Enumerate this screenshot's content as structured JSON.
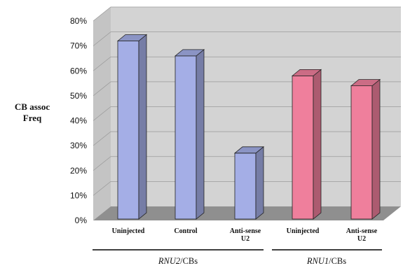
{
  "chart_data": {
    "type": "bar",
    "ylabel": [
      "CB assoc",
      "Freq"
    ],
    "ylim": [
      0,
      80
    ],
    "yticks": [
      "0%",
      "10%",
      "20%",
      "30%",
      "40%",
      "50%",
      "60%",
      "70%",
      "80%"
    ],
    "grid": true,
    "categories": [
      [
        "Uninjected"
      ],
      [
        "Control"
      ],
      [
        "Anti-sense",
        "U2"
      ],
      [
        "Uninjected"
      ],
      [
        "Anti-sense",
        "U2"
      ]
    ],
    "values": [
      72,
      66,
      27,
      58,
      54
    ],
    "colors": [
      "#a4aee6",
      "#a4aee6",
      "#a4aee6",
      "#ef7f9c",
      "#ef7f9c"
    ],
    "groups": [
      {
        "italic": "RNU2",
        "rest": "/CBs"
      },
      {
        "italic": "RNU1",
        "rest": "/CBs"
      }
    ]
  }
}
